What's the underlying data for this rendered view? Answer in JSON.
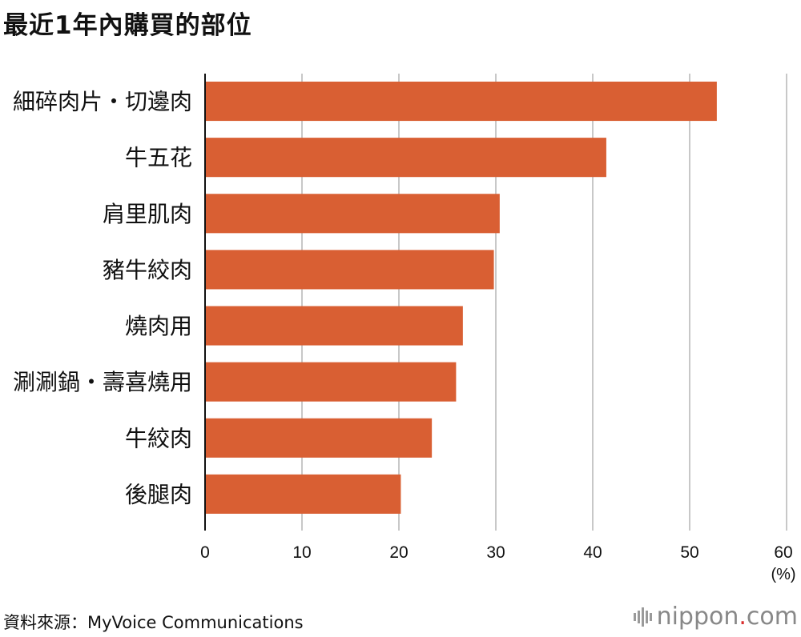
{
  "chart_data": {
    "type": "bar",
    "orientation": "horizontal",
    "title": "最近1年內購買的部位",
    "categories": [
      "細碎肉片・切邊肉",
      "牛五花",
      "肩里肌肉",
      "豬牛絞肉",
      "燒肉用",
      "涮涮鍋・壽喜燒用",
      "牛絞肉",
      "後腿肉"
    ],
    "values": [
      52.8,
      41.4,
      30.4,
      29.8,
      26.6,
      25.9,
      23.4,
      20.2
    ],
    "xlim": [
      0,
      60
    ],
    "xticks": [
      "0",
      "10",
      "20",
      "30",
      "40",
      "50",
      "60"
    ],
    "unit": "(%)",
    "grid": true,
    "bar_color": "#d95f33"
  },
  "source": "資料來源：MyVoice Communications",
  "brand": {
    "name": "nippon",
    "dot": ".",
    "tld": "com"
  }
}
